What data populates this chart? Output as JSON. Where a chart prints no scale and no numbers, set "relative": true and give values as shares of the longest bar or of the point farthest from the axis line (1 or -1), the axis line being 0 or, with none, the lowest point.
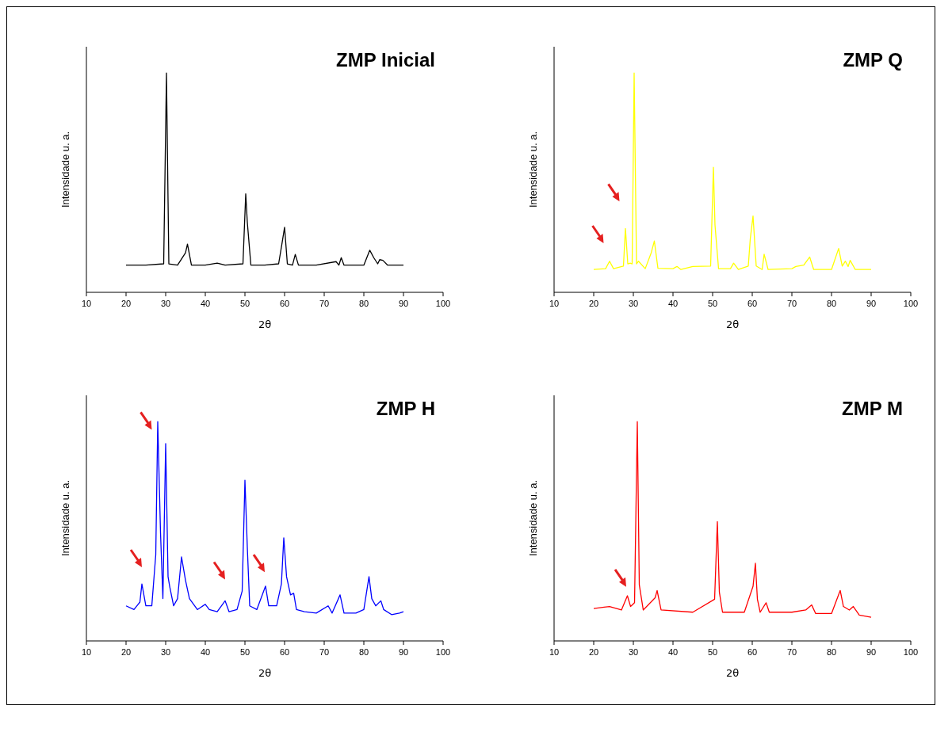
{
  "chart_data": [
    {
      "type": "line",
      "title": "ZMP Inicial",
      "xlabel": "2θ",
      "ylabel": "Intensidade u. a.",
      "relative": true,
      "xlim": [
        10,
        100
      ],
      "xticks": [
        10,
        20,
        30,
        40,
        50,
        60,
        70,
        80,
        90,
        100
      ],
      "color": "#000000",
      "x": [
        20,
        25,
        29.5,
        30.2,
        30.8,
        33,
        35,
        35.5,
        36.5,
        40,
        43,
        45,
        49.5,
        50.2,
        50.6,
        51.5,
        55,
        58.5,
        59.3,
        60,
        60.7,
        62,
        62.7,
        63.5,
        68,
        73,
        73.7,
        74.3,
        75,
        80,
        81.5,
        82.5,
        83.5,
        84,
        84.8,
        86,
        90
      ],
      "values": [
        0.124,
        0.124,
        0.13,
        1.0,
        0.13,
        0.124,
        0.18,
        0.22,
        0.124,
        0.124,
        0.133,
        0.124,
        0.13,
        0.449,
        0.32,
        0.124,
        0.124,
        0.13,
        0.217,
        0.297,
        0.13,
        0.124,
        0.173,
        0.124,
        0.124,
        0.14,
        0.124,
        0.158,
        0.124,
        0.124,
        0.192,
        0.158,
        0.13,
        0.149,
        0.146,
        0.124,
        0.124
      ]
    },
    {
      "type": "line",
      "title": "ZMP Q",
      "xlabel": "2θ",
      "ylabel": "Intensidade u. a.",
      "relative": true,
      "xlim": [
        10,
        100
      ],
      "xticks": [
        10,
        20,
        30,
        40,
        50,
        60,
        70,
        80,
        90,
        100
      ],
      "color": "#ffff00",
      "x": [
        20,
        23,
        24,
        25,
        27.5,
        28,
        28.6,
        29.2,
        29.7,
        30.2,
        30.8,
        31.3,
        33,
        34.5,
        35.3,
        36.2,
        40,
        41,
        42,
        45,
        49.5,
        50.2,
        50.6,
        51.5,
        54.5,
        55.3,
        56.5,
        59,
        59.5,
        60.2,
        61,
        62.5,
        63,
        64,
        70,
        71,
        73,
        74.5,
        75.5,
        80,
        81.8,
        82.7,
        83.5,
        84.2,
        84.7,
        86,
        90
      ],
      "values": [
        0.104,
        0.108,
        0.142,
        0.108,
        0.12,
        0.291,
        0.13,
        0.133,
        0.13,
        1.0,
        0.13,
        0.142,
        0.108,
        0.18,
        0.234,
        0.11,
        0.108,
        0.118,
        0.104,
        0.118,
        0.12,
        0.57,
        0.307,
        0.108,
        0.108,
        0.133,
        0.104,
        0.12,
        0.244,
        0.348,
        0.12,
        0.104,
        0.174,
        0.104,
        0.108,
        0.118,
        0.124,
        0.161,
        0.104,
        0.104,
        0.2,
        0.12,
        0.142,
        0.118,
        0.146,
        0.104,
        0.104
      ]
    },
    {
      "type": "line",
      "title": "ZMP H",
      "xlabel": "2θ",
      "ylabel": "Intensidade u. a.",
      "relative": true,
      "xlim": [
        10,
        100
      ],
      "xticks": [
        10,
        20,
        30,
        40,
        50,
        60,
        70,
        80,
        90,
        100
      ],
      "color": "#0000ff",
      "x": [
        20,
        22,
        23.5,
        24,
        25,
        26.5,
        27.5,
        28,
        28.7,
        29.3,
        30,
        30.6,
        31,
        32,
        33,
        34,
        35,
        36,
        38,
        40,
        41,
        43,
        45,
        46,
        48,
        49.3,
        50,
        50.6,
        51.2,
        53,
        55.2,
        56,
        58,
        59.2,
        59.8,
        60.5,
        61.5,
        62.3,
        63,
        65,
        68,
        71,
        72,
        74,
        75,
        78,
        80,
        81.3,
        82,
        83,
        84.3,
        85,
        87,
        89,
        90
      ],
      "values": [
        0.16,
        0.143,
        0.177,
        0.26,
        0.16,
        0.16,
        0.393,
        1.0,
        0.493,
        0.193,
        0.9,
        0.293,
        0.25,
        0.16,
        0.193,
        0.383,
        0.277,
        0.193,
        0.143,
        0.167,
        0.143,
        0.133,
        0.183,
        0.133,
        0.143,
        0.227,
        0.733,
        0.427,
        0.16,
        0.143,
        0.25,
        0.16,
        0.16,
        0.26,
        0.47,
        0.293,
        0.21,
        0.217,
        0.143,
        0.133,
        0.127,
        0.16,
        0.127,
        0.21,
        0.127,
        0.127,
        0.143,
        0.293,
        0.193,
        0.16,
        0.183,
        0.143,
        0.12,
        0.127,
        0.133
      ]
    },
    {
      "type": "line",
      "title": "ZMP M",
      "xlabel": "2θ",
      "ylabel": "Intensidade u. a.",
      "relative": true,
      "xlim": [
        10,
        100
      ],
      "xticks": [
        10,
        20,
        30,
        40,
        50,
        60,
        70,
        80,
        90,
        100
      ],
      "color": "#ff0000",
      "x": [
        20,
        24,
        27,
        28.5,
        29.3,
        30.3,
        31,
        31.5,
        32.5,
        35.5,
        36,
        37,
        45,
        50.5,
        51.2,
        51.7,
        52.5,
        58,
        60.2,
        60.8,
        61.3,
        62,
        63.5,
        64.3,
        70,
        73.5,
        75,
        76,
        80,
        82.2,
        83,
        84.5,
        85.5,
        87,
        90
      ],
      "values": [
        0.148,
        0.157,
        0.141,
        0.206,
        0.157,
        0.174,
        1.0,
        0.256,
        0.141,
        0.197,
        0.23,
        0.141,
        0.131,
        0.19,
        0.544,
        0.223,
        0.131,
        0.131,
        0.249,
        0.354,
        0.19,
        0.131,
        0.174,
        0.131,
        0.131,
        0.141,
        0.164,
        0.125,
        0.125,
        0.23,
        0.157,
        0.141,
        0.157,
        0.118,
        0.108
      ]
    }
  ]
}
